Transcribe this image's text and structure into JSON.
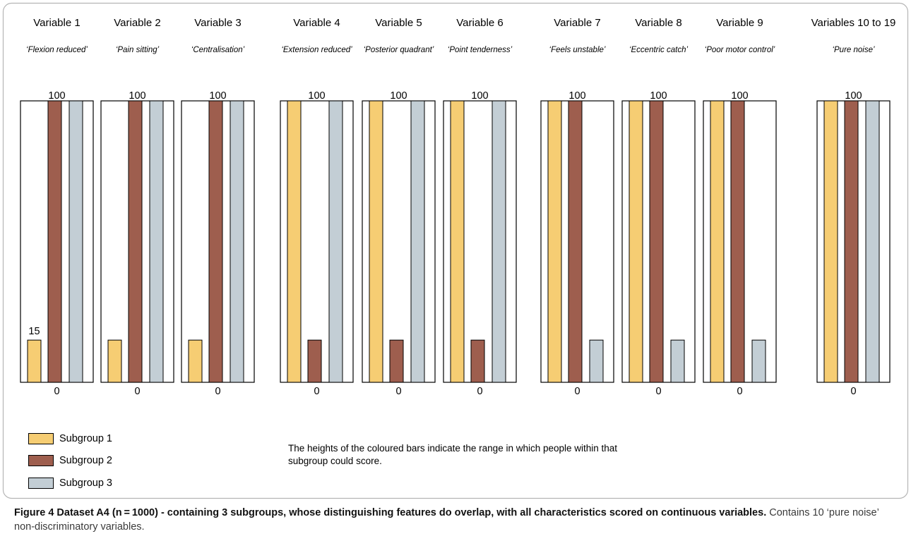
{
  "chart_data": {
    "type": "bar",
    "subgroups": [
      "Subgroup 1",
      "Subgroup 2",
      "Subgroup 3"
    ],
    "colors": [
      "#f6cd73",
      "#9e5e4e",
      "#c3ced5"
    ],
    "ylim": [
      0,
      100
    ],
    "groups": [
      {
        "header": "Variable 1",
        "subtitle": "‘Flexion reduced’",
        "top_label": "100",
        "bottom_label": "0",
        "value_label": "15",
        "bars": [
          [
            0,
            15
          ],
          [
            0,
            100
          ],
          [
            0,
            100
          ]
        ]
      },
      {
        "header": "Variable 2",
        "subtitle": "‘Pain sitting’",
        "top_label": "100",
        "bottom_label": "0",
        "bars": [
          [
            0,
            15
          ],
          [
            0,
            100
          ],
          [
            0,
            100
          ]
        ]
      },
      {
        "header": "Variable 3",
        "subtitle": "‘Centralisation’",
        "top_label": "100",
        "bottom_label": "0",
        "bars": [
          [
            0,
            15
          ],
          [
            0,
            100
          ],
          [
            0,
            100
          ]
        ]
      },
      {
        "header": "Variable 4",
        "subtitle": "‘Extension reduced’",
        "top_label": "100",
        "bottom_label": "0",
        "bars": [
          [
            0,
            100
          ],
          [
            0,
            15
          ],
          [
            0,
            100
          ]
        ]
      },
      {
        "header": "Variable 5",
        "subtitle": "‘Posterior quadrant’",
        "top_label": "100",
        "bottom_label": "0",
        "bars": [
          [
            0,
            100
          ],
          [
            0,
            15
          ],
          [
            0,
            100
          ]
        ]
      },
      {
        "header": "Variable 6",
        "subtitle": "‘Point tenderness’",
        "top_label": "100",
        "bottom_label": "0",
        "bars": [
          [
            0,
            100
          ],
          [
            0,
            15
          ],
          [
            0,
            100
          ]
        ]
      },
      {
        "header": "Variable 7",
        "subtitle": "‘Feels unstable’",
        "top_label": "100",
        "bottom_label": "0",
        "bars": [
          [
            0,
            100
          ],
          [
            0,
            100
          ],
          [
            0,
            15
          ]
        ]
      },
      {
        "header": "Variable 8",
        "subtitle": "‘Eccentric catch’",
        "top_label": "100",
        "bottom_label": "0",
        "bars": [
          [
            0,
            100
          ],
          [
            0,
            100
          ],
          [
            0,
            15
          ]
        ]
      },
      {
        "header": "Variable 9",
        "subtitle": "‘Poor motor control’",
        "top_label": "100",
        "bottom_label": "0",
        "bars": [
          [
            0,
            100
          ],
          [
            0,
            100
          ],
          [
            0,
            15
          ]
        ]
      },
      {
        "header": "Variables 10 to 19",
        "subtitle": "‘Pure noise’",
        "top_label": "100",
        "bottom_label": "0",
        "bars": [
          [
            0,
            100
          ],
          [
            0,
            100
          ],
          [
            0,
            100
          ]
        ]
      }
    ]
  },
  "legend": {
    "items": [
      {
        "label": "Subgroup 1"
      },
      {
        "label": "Subgroup 2"
      },
      {
        "label": "Subgroup 3"
      }
    ]
  },
  "note": "The heights of the coloured bars indicate the range in which people within that subgroup could score.",
  "caption": {
    "bold": "Figure 4 Dataset A4 (n = 1000) - containing 3 subgroups, whose distinguishing features do overlap, with all characteristics scored on continuous variables.",
    "normal": " Contains 10 ‘pure noise’ non-discriminatory variables."
  }
}
